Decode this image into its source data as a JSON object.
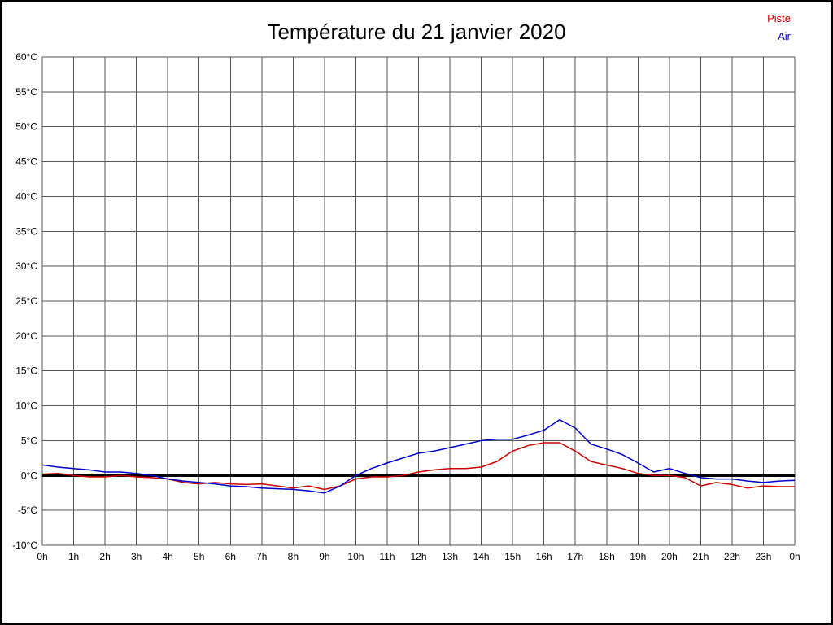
{
  "chart_data": {
    "type": "line",
    "title": "Température du 21 janvier 2020",
    "xlabel": "",
    "ylabel": "",
    "xlim": [
      0,
      24
    ],
    "ylim": [
      -10,
      60
    ],
    "y_tick_step": 5,
    "grid": true,
    "grid_color": "#555555",
    "zero_line": {
      "value": 0,
      "color": "#000000",
      "width": 3
    },
    "legend_position": "top-right",
    "x_tick_labels": [
      "0h",
      "1h",
      "2h",
      "3h",
      "4h",
      "5h",
      "6h",
      "7h",
      "8h",
      "9h",
      "10h",
      "11h",
      "12h",
      "13h",
      "14h",
      "15h",
      "16h",
      "17h",
      "18h",
      "19h",
      "20h",
      "21h",
      "22h",
      "23h",
      "0h"
    ],
    "y_tick_labels": [
      "60°C",
      "55°C",
      "50°C",
      "45°C",
      "40°C",
      "35°C",
      "30°C",
      "25°C",
      "20°C",
      "15°C",
      "10°C",
      "5°C",
      "0°C",
      "-5°C",
      "-10°C"
    ],
    "x": [
      0,
      0.5,
      1,
      1.5,
      2,
      2.5,
      3,
      3.5,
      4,
      4.5,
      5,
      5.5,
      6,
      6.5,
      7,
      7.5,
      8,
      8.5,
      9,
      9.5,
      10,
      10.5,
      11,
      11.5,
      12,
      12.5,
      13,
      13.5,
      14,
      14.5,
      15,
      15.5,
      16,
      16.5,
      17,
      17.5,
      18,
      18.5,
      19,
      19.5,
      20,
      20.5,
      21,
      21.5,
      22,
      22.5,
      23,
      23.5,
      24
    ],
    "series": [
      {
        "name": "Piste",
        "color": "#cc0000",
        "values": [
          0.2,
          0.3,
          0.0,
          -0.2,
          -0.2,
          0.0,
          -0.2,
          -0.3,
          -0.5,
          -1.0,
          -1.2,
          -1.0,
          -1.2,
          -1.3,
          -1.2,
          -1.5,
          -1.8,
          -1.5,
          -2.0,
          -1.5,
          -0.5,
          -0.2,
          -0.2,
          0.0,
          0.5,
          0.8,
          1.0,
          1.0,
          1.2,
          2.0,
          3.5,
          4.3,
          4.7,
          4.7,
          3.5,
          2.0,
          1.5,
          1.0,
          0.3,
          0.0,
          0.0,
          -0.3,
          -1.5,
          -1.0,
          -1.3,
          -1.8,
          -1.5,
          -1.6,
          -1.6
        ]
      },
      {
        "name": "Air",
        "color": "#0000cc",
        "values": [
          1.5,
          1.2,
          1.0,
          0.8,
          0.5,
          0.5,
          0.3,
          0.0,
          -0.5,
          -0.8,
          -1.0,
          -1.2,
          -1.5,
          -1.6,
          -1.8,
          -1.9,
          -2.0,
          -2.2,
          -2.5,
          -1.5,
          0.0,
          1.0,
          1.8,
          2.5,
          3.2,
          3.5,
          4.0,
          4.5,
          5.0,
          5.2,
          5.2,
          5.8,
          6.5,
          8.0,
          6.8,
          4.5,
          3.8,
          3.0,
          1.8,
          0.5,
          1.0,
          0.3,
          -0.3,
          -0.5,
          -0.5,
          -0.8,
          -1.0,
          -0.8,
          -0.7
        ]
      }
    ]
  }
}
